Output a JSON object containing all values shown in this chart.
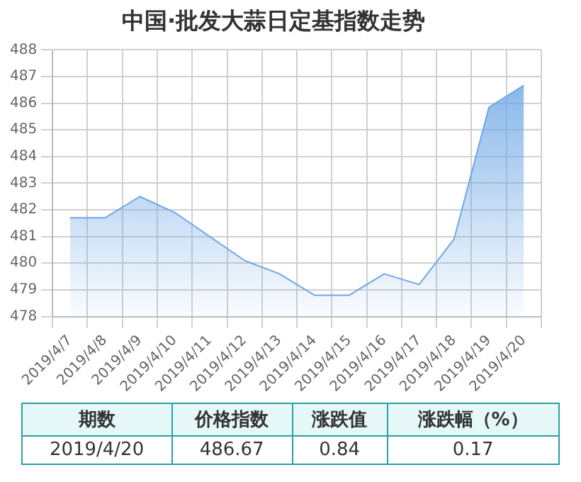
{
  "chart_data": {
    "type": "area",
    "title": "中国·批发大蒜日定基指数走势",
    "categories": [
      "2019/4/7",
      "2019/4/8",
      "2019/4/9",
      "2019/4/10",
      "2019/4/11",
      "2019/4/12",
      "2019/4/13",
      "2019/4/14",
      "2019/4/15",
      "2019/4/16",
      "2019/4/17",
      "2019/4/18",
      "2019/4/19",
      "2019/4/20"
    ],
    "series": [
      {
        "color": "#6fa8e6",
        "values": [
          481.7,
          481.7,
          482.5,
          481.9,
          481.0,
          480.1,
          479.6,
          478.8,
          478.8,
          479.6,
          479.2,
          480.9,
          485.85,
          486.67
        ]
      }
    ],
    "ylim": [
      478,
      488
    ],
    "yticks": [
      478,
      479,
      480,
      481,
      482,
      483,
      484,
      485,
      486,
      487,
      488
    ],
    "grid": true,
    "legend": false,
    "marker": "none",
    "annotations": [
      "期数",
      "价格指数",
      "涨跌值",
      "涨跌幅（%）",
      "2019/4/20",
      "486.67",
      "0.84",
      "0.17"
    ]
  }
}
